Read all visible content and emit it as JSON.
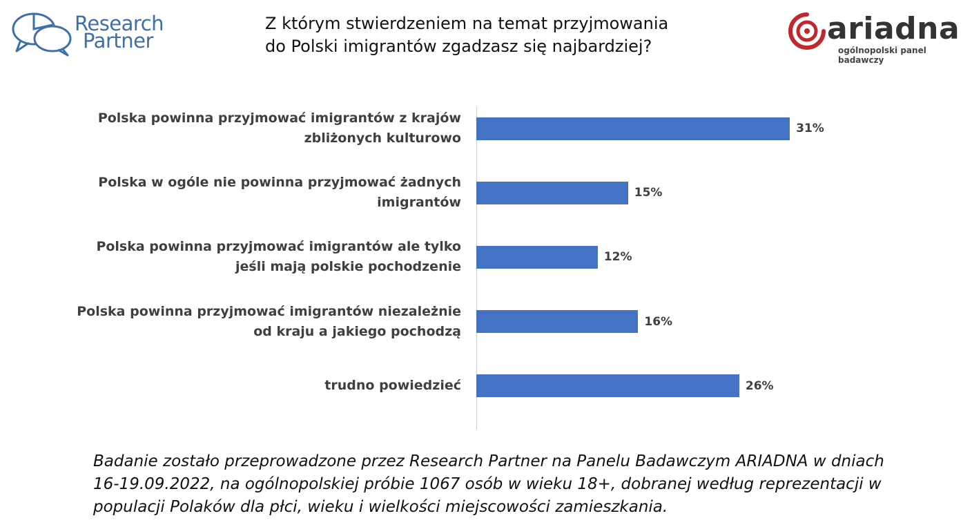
{
  "header": {
    "left_logo": {
      "line1": "Research",
      "line2": "Partner",
      "color": "#3f6fa8"
    },
    "title_lines": [
      "Z którym stwierdzeniem na temat przyjmowania",
      "do Polski imigrantów zgadzasz się najbardziej?"
    ],
    "right_logo": {
      "word": "ariadna",
      "tagline": "ogólnopolski panel badawczy",
      "accent": "#c0282d"
    }
  },
  "chart_data": {
    "type": "bar",
    "orientation": "horizontal",
    "categories": [
      [
        "Polska powinna przyjmować imigrantów z krajów",
        "zbliżonych kulturowo"
      ],
      [
        "Polska w ogóle nie powinna przyjmować  żadnych",
        "imigrantów"
      ],
      [
        "Polska powinna przyjmować imigrantów ale tylko",
        "jeśli mają polskie pochodzenie"
      ],
      [
        "Polska powinna przyjmować imigrantów niezależnie",
        "od kraju a jakiego pochodzą"
      ],
      [
        "trudno powiedzieć"
      ]
    ],
    "values": [
      31,
      15,
      12,
      16,
      26
    ],
    "value_labels": [
      "31%",
      "15%",
      "12%",
      "16%",
      "26%"
    ],
    "unit": "%",
    "xlim": [
      0,
      35
    ],
    "bar_color": "#4472c4",
    "grid": false,
    "legend": "none"
  },
  "footnote_lines": [
    "Badanie zostało przeprowadzone przez Research Partner na Panelu Badawczym ARIADNA w dniach",
    "16-19.09.2022, na ogólnopolskiej próbie 1067 osób w wieku 18+, dobranej według reprezentacji w",
    "populacji Polaków dla płci, wieku i wielkości miejscowości zamieszkania."
  ]
}
